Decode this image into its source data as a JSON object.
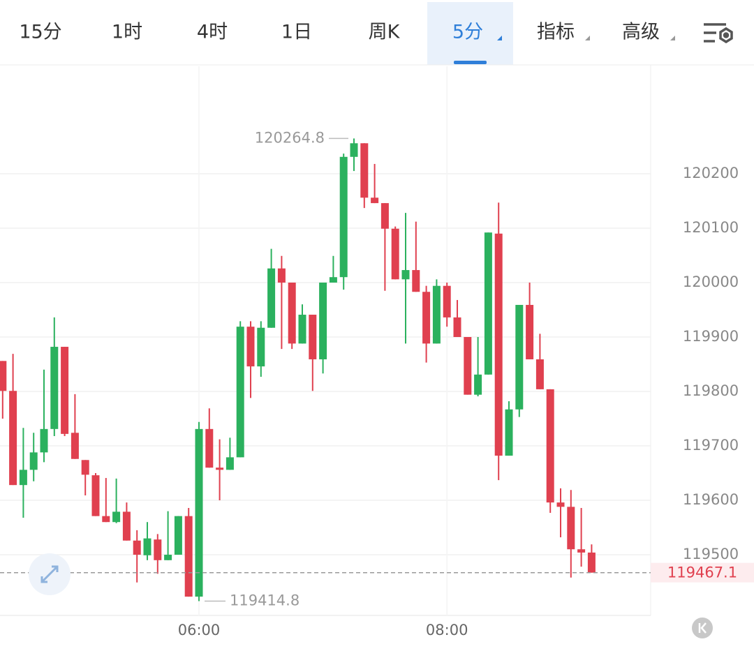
{
  "tabs": [
    "15分",
    "1时",
    "4时",
    "1日",
    "周K",
    "5分",
    "指标",
    "高级"
  ],
  "active_tab": 5,
  "chart_data": {
    "type": "candlestick",
    "up_color": "#2bb15e",
    "down_color": "#e0404f",
    "grid": true,
    "categories": [
      null,
      null,
      null,
      null,
      null,
      null,
      null,
      null,
      null,
      null,
      null,
      null,
      null,
      null,
      null,
      null,
      null,
      null,
      null,
      "06:00",
      null,
      null,
      null,
      null,
      null,
      null,
      null,
      null,
      null,
      null,
      null,
      null,
      null,
      null,
      null,
      null,
      null,
      null,
      null,
      null,
      null,
      null,
      null,
      "08:00",
      null,
      null,
      null,
      null,
      null,
      null,
      null,
      null,
      null,
      null,
      null,
      null,
      null,
      null
    ],
    "open": [
      119856,
      119801,
      119628,
      119656,
      119688,
      119731,
      119882,
      119724,
      119674,
      119646,
      119571,
      119560,
      119579,
      119526,
      119499,
      119528,
      119490,
      119500,
      119571,
      119423,
      119731,
      119660,
      119656,
      119679,
      119919,
      119846,
      119917,
      120026,
      120000,
      119888,
      119941,
      119859,
      120000,
      120010,
      120231,
      120256,
      120156,
      120146,
      120099,
      120006,
      120023,
      119983,
      119888,
      119994,
      119936,
      119900,
      119794,
      119831,
      120090,
      119682,
      119767,
      119959,
      119859,
      119804,
      119596,
      119588,
      119510,
      119504
    ],
    "high": [
      119856,
      119869,
      119733,
      119724,
      119840,
      119936,
      119882,
      119795,
      119674,
      119650,
      119641,
      119640,
      119596,
      119545,
      119560,
      119538,
      119580,
      119571,
      119586,
      119744,
      119769,
      119712,
      119715,
      119929,
      119929,
      119929,
      120062,
      120049,
      120000,
      119960,
      119941,
      120000,
      120049,
      120237,
      120264.8,
      120256,
      120218,
      120146,
      120103,
      120128,
      120112,
      119994,
      120006,
      120000,
      119968,
      119900,
      119900,
      120092,
      120147,
      119782,
      119959,
      120000,
      119906,
      119804,
      119622,
      119619,
      119586,
      119519
    ],
    "low": [
      119750,
      119628,
      119568,
      119635,
      119670,
      119718,
      119718,
      119676,
      119609,
      119571,
      119560,
      119558,
      119526,
      119449,
      119490,
      119465,
      119490,
      119500,
      119423,
      119414.8,
      119660,
      119600,
      119656,
      119679,
      119788,
      119827,
      119917,
      119878,
      119878,
      119888,
      119801,
      119833,
      120000,
      119987,
      120205,
      120137,
      120146,
      119985,
      120006,
      119888,
      119983,
      119853,
      119888,
      119919,
      119900,
      119794,
      119791,
      119831,
      119637,
      119682,
      119753,
      119859,
      119804,
      119577,
      119532,
      119458,
      119478,
      119467.1
    ],
    "close": [
      119801,
      119628,
      119656,
      119688,
      119731,
      119882,
      119722,
      119676,
      119647,
      119571,
      119560,
      119579,
      119526,
      119500,
      119530,
      119490,
      119500,
      119571,
      119423,
      119731,
      119660,
      119656,
      119679,
      119919,
      119846,
      119917,
      120026,
      120000,
      119888,
      119941,
      119859,
      120000,
      120010,
      120231,
      120256,
      120156,
      120146,
      120099,
      120006,
      120023,
      119983,
      119888,
      119994,
      119936,
      119900,
      119794,
      119831,
      120092,
      119682,
      119767,
      119959,
      119859,
      119804,
      119596,
      119588,
      119510,
      119504,
      119467.1
    ],
    "ylim": [
      119388.5,
      120397.4
    ],
    "yticks": [
      119500,
      119600,
      119700,
      119800,
      119900,
      120000,
      120100,
      120200
    ],
    "high_marker": 120264.8,
    "low_marker": 119414.8,
    "last_price": 119467.1
  }
}
